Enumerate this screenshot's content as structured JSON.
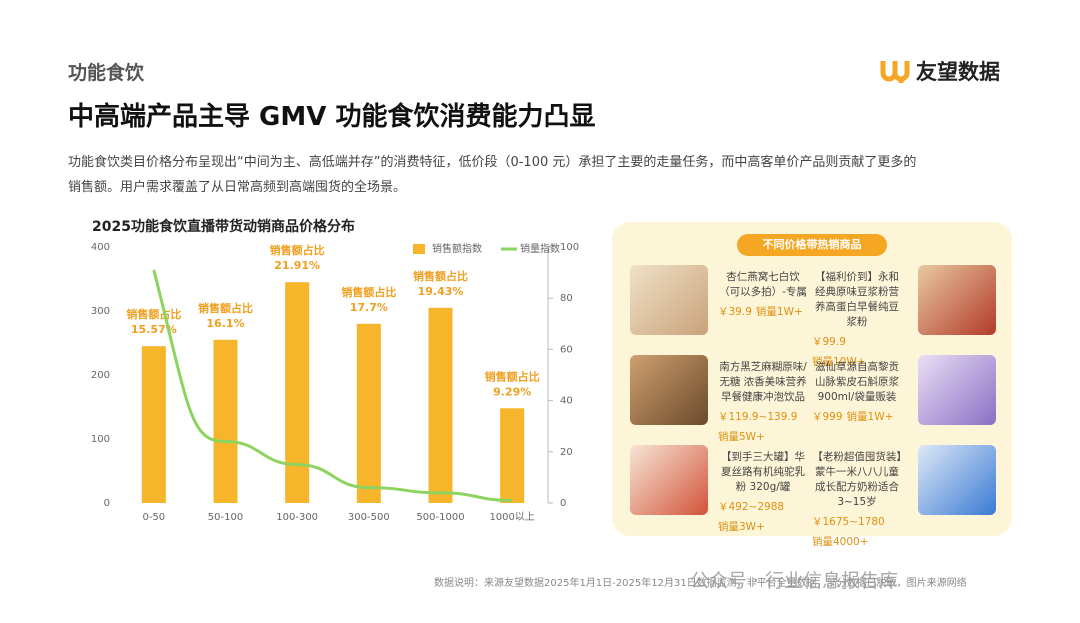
{
  "header": {
    "section": "功能食饮",
    "brand": "友望数据",
    "title": "中高端产品主导 GMV  功能食饮消费能力凸显",
    "description": [
      "功能食饮类目价格分布呈现出“中间为主、高低端并存”的消费特征，低价段（0-100 元）承担了主要的走量任务，而中高客单价产品则贡献了更多的",
      "销售额。用户需求覆盖了从日常高频到高端囤货的全场景。"
    ]
  },
  "chart_data": {
    "type": "bar",
    "title": "2025功能食饮直播带货动销商品价格分布",
    "categories": [
      "0-50",
      "50-100",
      "100-300",
      "300-500",
      "500-1000",
      "1000以上"
    ],
    "series": [
      {
        "name": "销售额指数",
        "color": "#f7b52c",
        "values": [
          245,
          255,
          345,
          280,
          305,
          148
        ]
      },
      {
        "name": "销量指数",
        "color": "#8dd35f",
        "axis": "y2",
        "values": [
          91,
          24,
          15,
          6,
          4,
          1
        ]
      }
    ],
    "ylim": [
      0,
      400
    ],
    "yticks": [
      0,
      100,
      200,
      300,
      400
    ],
    "y2lim": [
      0,
      100
    ],
    "y2ticks": [
      0,
      20,
      40,
      60,
      80,
      100
    ],
    "bar_label_title": "销售额占比",
    "share_labels": [
      "15.57%",
      "16.1%",
      "21.91%",
      "17.7%",
      "19.43%",
      "9.29%"
    ]
  },
  "products": {
    "title": "不同价格带热销商品",
    "rows": [
      [
        {
          "name": "杏仁燕窝七白饮（可以多拍）-专属",
          "price": "￥39.9",
          "sales": "销量1W+"
        },
        {
          "name": "【福利价到】永和经典原味豆浆粉营养高蛋白早餐纯豆浆粉",
          "price": "￥99.9",
          "sales": "销量10W+"
        }
      ],
      [
        {
          "name": "南方黑芝麻糊原味/无糖 浓香美味营养早餐健康冲泡饮品",
          "price": "￥119.9~139.9",
          "sales": "销量5W+"
        },
        {
          "name": "滋仙草源自高黎贡山脉紫皮石斛原浆900ml/袋量贩装",
          "price": "￥999",
          "sales": "销量1W+"
        }
      ],
      [
        {
          "name": "【到手三大罐】华夏丝路有机纯驼乳粉 320g/罐",
          "price": "￥492~2988",
          "sales": "销量3W+"
        },
        {
          "name": "【老粉超值囤货装】蒙牛一米八八儿童成长配方奶粉适合3~15岁",
          "price": "￥1675~1780",
          "sales": "销量4000+"
        }
      ]
    ]
  },
  "footer": {
    "note": "数据说明：来源友望数据2025年1月1日-2025年12月31日数据监测，非平台全量数据，部分数据已脱敏，图片来源网络",
    "watermark": "公众号 · 行业信息报告库"
  }
}
